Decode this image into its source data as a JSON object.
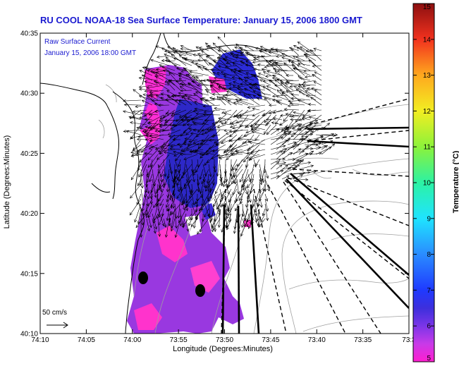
{
  "header": {
    "title": "RU COOL  NOAA-18  Sea Surface Temperature:  January 15, 2006 1800 GMT"
  },
  "map": {
    "x_axis_label": "Longitude (Degrees:Minutes)",
    "y_axis_label": "Latitude (Degrees:Minutes)",
    "x_ticks": [
      "74:10",
      "74:05",
      "74:00",
      "73:55",
      "73:50",
      "73:45",
      "73:40",
      "73:35",
      "73:3"
    ],
    "y_ticks": [
      "40:35",
      "40:30",
      "40:25",
      "40:20",
      "40:15",
      "40:10"
    ],
    "annotation_line1": "Raw Surface Current",
    "annotation_line2": "January 15, 2006 18:00 GMT",
    "scale_label": "50 cm/s",
    "legend": {
      "title": "Temperature (°C)",
      "ticks": [
        "15",
        "14",
        "13",
        "12",
        "11",
        "10",
        "9",
        "8",
        "7",
        "6",
        "5"
      ],
      "range": [
        5,
        15
      ]
    },
    "colors": {
      "title_text": "#1a1ad0",
      "land_line": "#000000",
      "depth_contour": "#a0a0a0",
      "sst_cold": "#ff33cc",
      "sst_mid": "#7a2be0",
      "sst_warm": "#2b2bd8"
    },
    "features": [
      "coastline",
      "bathymetry-contours",
      "sst-overlay",
      "surface-current-vectors",
      "radar-beam-lines",
      "radar-sites"
    ]
  }
}
